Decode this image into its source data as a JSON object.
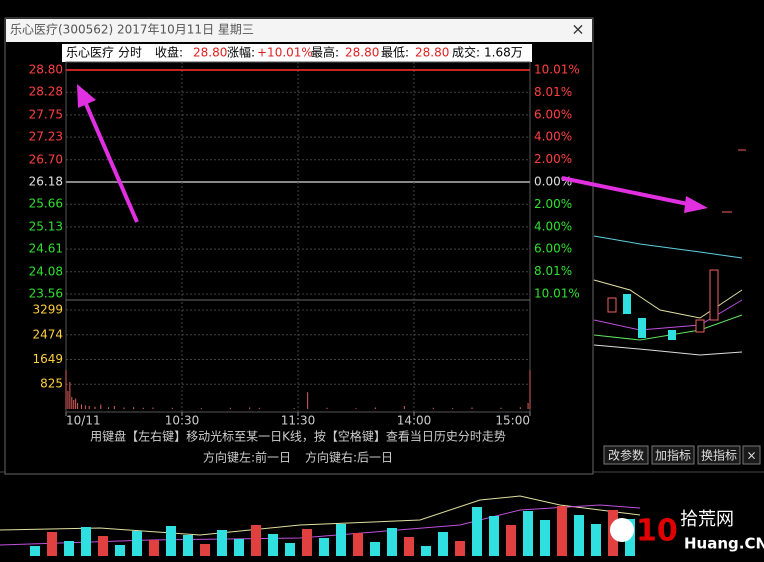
{
  "window": {
    "title": "乐心医疗(300562) 2017年10月11日 星期三",
    "close": "×"
  },
  "info": {
    "name": "乐心医疗",
    "mode": "分时",
    "close_label": "收盘:",
    "close": "28.80",
    "change_label": "涨幅:",
    "change": "+10.01%",
    "high_label": "最高:",
    "high": "28.80",
    "low_label": "最低:",
    "low": "28.80",
    "volume_label": "成交:",
    "volume": "1.68万"
  },
  "chart_data": {
    "type": "line",
    "x": [
      0,
      240
    ],
    "series": [
      {
        "color": "#ff3030",
        "values": [
          28.8,
          28.8
        ]
      }
    ],
    "xlim": [
      0,
      240
    ],
    "xticks": [
      {
        "value": 0,
        "label": "10/11"
      },
      {
        "value": 60,
        "label": "10:30"
      },
      {
        "value": 120,
        "label": "11:30"
      },
      {
        "value": 180,
        "label": "14:00"
      },
      {
        "value": 240,
        "label": "15:00"
      }
    ],
    "ylim": [
      23.56,
      28.8
    ],
    "yticks": [
      {
        "value": 28.8,
        "label": "28.80"
      },
      28.28,
      27.75,
      27.23,
      {
        "value": 26.7,
        "label": "26.70"
      },
      26.18,
      25.66,
      25.13,
      24.61,
      24.08,
      23.56
    ],
    "y2lim": [
      -10.01,
      10.01
    ],
    "y2ticks": [
      {
        "value": 10.01,
        "label": "10.01%"
      },
      {
        "value": 8.01,
        "label": "8.01%"
      },
      {
        "value": 6,
        "label": "6.00%"
      },
      {
        "value": 4,
        "label": "4.00%"
      },
      {
        "value": 2,
        "label": "2.00%"
      },
      {
        "value": 0,
        "label": "0.00%"
      },
      {
        "value": -2,
        "label": "2.00%"
      },
      {
        "value": -4,
        "label": "4.00%"
      },
      {
        "value": -6,
        "label": "6.00%"
      },
      {
        "value": -8.01,
        "label": "8.01%"
      },
      {
        "value": -10.01,
        "label": "10.01%"
      }
    ],
    "grid": true,
    "volume": {
      "color": "#e06060",
      "x": [
        0,
        1,
        2,
        3,
        4,
        5,
        6,
        8,
        10,
        12,
        15,
        18,
        22,
        25,
        30,
        35,
        40,
        45,
        55,
        70,
        85,
        95,
        100,
        118,
        125,
        135,
        150,
        160,
        175,
        190,
        200,
        210,
        225,
        235,
        239,
        240
      ],
      "values": [
        1300,
        600,
        900,
        400,
        300,
        350,
        200,
        150,
        120,
        100,
        80,
        150,
        60,
        100,
        50,
        60,
        40,
        50,
        40,
        30,
        40,
        50,
        40,
        30,
        560,
        40,
        30,
        50,
        100,
        40,
        30,
        50,
        40,
        60,
        200,
        1300
      ],
      "ylim": [
        0,
        3299
      ],
      "yticks": [
        825,
        1649,
        2474,
        3299
      ]
    }
  },
  "hint": {
    "line1": "用键盘【左右键】移动光标至某一日K线，按【空格键】查看当日历史分时走势",
    "left": "方向键左:前一日",
    "right": "方向键右:后一日"
  },
  "buttons": [
    "改参数",
    "加指标",
    "换指标",
    "×"
  ],
  "watermark": {
    "number": "10",
    "name": "拾荒网",
    "url": "Huang.CN"
  }
}
